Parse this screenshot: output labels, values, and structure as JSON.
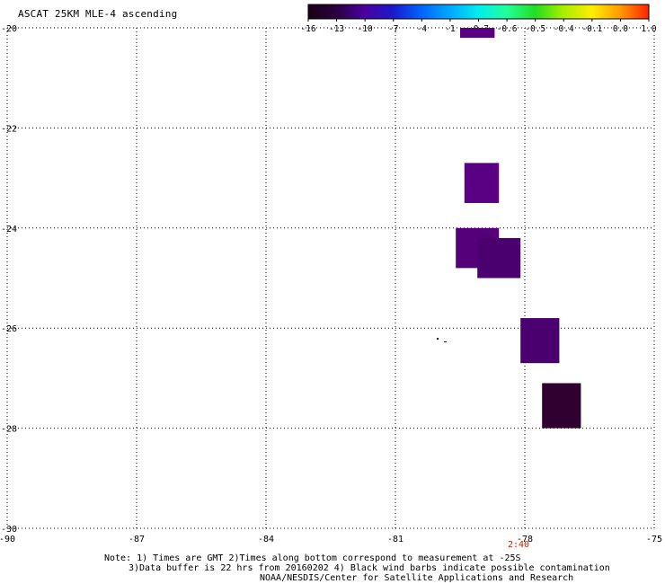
{
  "title": "ASCAT 25KM MLE-4 ascending",
  "colorbar": {
    "labels": [
      "-16",
      "-13",
      "-10",
      "-7",
      "-4",
      "-1",
      "-0.7",
      "-0.6",
      "-0.5",
      "-0.4",
      "-0.1",
      "0.0",
      "1.0"
    ],
    "colors": [
      "#1a0014",
      "#2b0040",
      "#4b00a0",
      "#1a1acc",
      "#0066ff",
      "#00aaff",
      "#00eeee",
      "#22ff99",
      "#22dd22",
      "#aaee00",
      "#ffee00",
      "#ff9900",
      "#ff2200"
    ]
  },
  "axes": {
    "x_ticks": [
      "-90",
      "-87",
      "-84",
      "-81",
      "-78",
      "-75"
    ],
    "y_ticks": [
      "-20",
      "-22",
      "-24",
      "-26",
      "-28",
      "-30"
    ]
  },
  "data_cells": [
    {
      "lon": -79.5,
      "lat": -20.0,
      "lon2": -78.7,
      "lat2": -20.2,
      "color": "#5a0082"
    },
    {
      "lon": -79.4,
      "lat": -22.7,
      "lon2": -78.6,
      "lat2": -23.5,
      "color": "#5a0082"
    },
    {
      "lon": -79.6,
      "lat": -24.0,
      "lon2": -78.6,
      "lat2": -24.8,
      "color": "#55007a"
    },
    {
      "lon": -79.1,
      "lat": -24.2,
      "lon2": -78.1,
      "lat2": -25.0,
      "color": "#4a006e"
    },
    {
      "lon": -78.1,
      "lat": -25.8,
      "lon2": -77.2,
      "lat2": -26.7,
      "color": "#4a006e"
    },
    {
      "lon": -77.6,
      "lat": -27.1,
      "lon2": -76.7,
      "lat2": -28.0,
      "color": "#300030"
    }
  ],
  "time_label": "2:40",
  "notes": [
    "Note: 1) Times are GMT 2)Times along bottom correspond to measurement at -25S",
    "3)Data buffer is 22 hrs from 20160202 4) Black wind barbs indicate possible contamination",
    "NOAA/NESDIS/Center for Satellite Applications and Research"
  ]
}
